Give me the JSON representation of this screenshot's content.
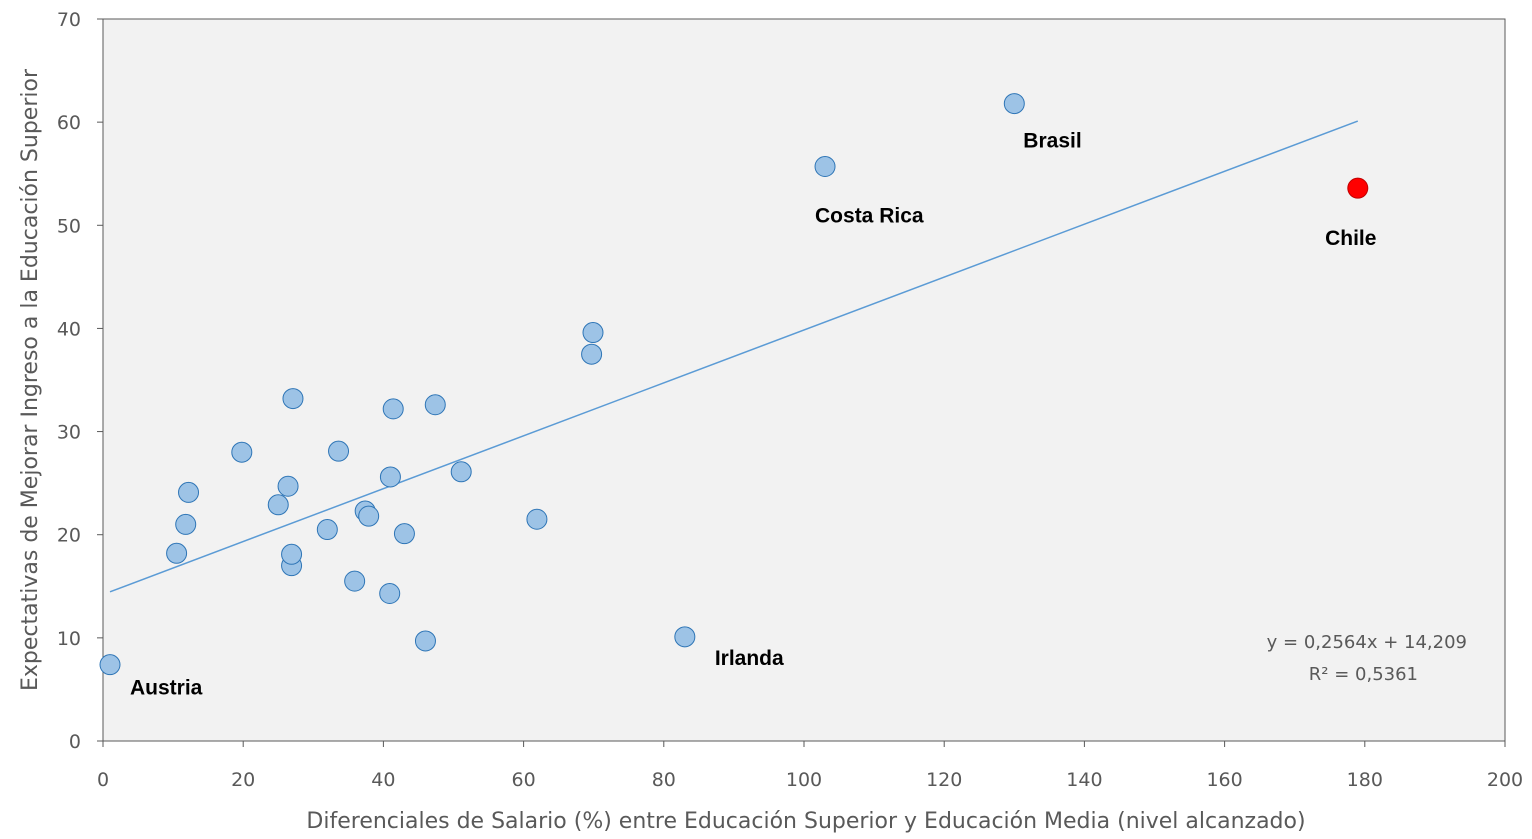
{
  "chart_data": {
    "type": "scatter",
    "xlabel": "Diferenciales de Salario (%) entre Educación Superior y Educación Media (nivel alcanzado)",
    "ylabel": "Expectativas de Mejorar Ingreso a la Educación Superior",
    "xlim": [
      0,
      200
    ],
    "ylim": [
      0,
      70
    ],
    "x_ticks": [
      "0",
      "20",
      "40",
      "60",
      "80",
      "100",
      "120",
      "140",
      "160",
      "180",
      "200"
    ],
    "y_ticks": [
      "0",
      "10",
      "20",
      "30",
      "40",
      "50",
      "60",
      "70"
    ],
    "grid": false,
    "colors": {
      "point": "#9dc3e6",
      "point_edge": "#2e75b6",
      "highlight": "#ff0000",
      "highlight_edge": "#c00000",
      "trendline": "#5b9bd5",
      "plot_bg": "#f2f2f2"
    },
    "series": [
      {
        "points": [
          {
            "x": 1,
            "y": 7.4,
            "label": "Austria"
          },
          {
            "x": 10.5,
            "y": 18.2,
            "label": ""
          },
          {
            "x": 11.8,
            "y": 21.0,
            "label": ""
          },
          {
            "x": 12.2,
            "y": 24.1,
            "label": ""
          },
          {
            "x": 19.8,
            "y": 28.0,
            "label": ""
          },
          {
            "x": 25.0,
            "y": 22.9,
            "label": ""
          },
          {
            "x": 26.4,
            "y": 24.7,
            "label": ""
          },
          {
            "x": 26.9,
            "y": 17.0,
            "label": ""
          },
          {
            "x": 26.9,
            "y": 18.1,
            "label": ""
          },
          {
            "x": 27.1,
            "y": 33.2,
            "label": ""
          },
          {
            "x": 32.0,
            "y": 20.5,
            "label": ""
          },
          {
            "x": 33.6,
            "y": 28.1,
            "label": ""
          },
          {
            "x": 35.9,
            "y": 15.5,
            "label": ""
          },
          {
            "x": 37.4,
            "y": 22.3,
            "label": ""
          },
          {
            "x": 37.9,
            "y": 21.8,
            "label": ""
          },
          {
            "x": 40.9,
            "y": 14.3,
            "label": ""
          },
          {
            "x": 41.0,
            "y": 25.6,
            "label": ""
          },
          {
            "x": 41.4,
            "y": 32.2,
            "label": ""
          },
          {
            "x": 43.0,
            "y": 20.1,
            "label": ""
          },
          {
            "x": 46.0,
            "y": 9.7,
            "label": ""
          },
          {
            "x": 47.4,
            "y": 32.6,
            "label": ""
          },
          {
            "x": 51.1,
            "y": 26.1,
            "label": ""
          },
          {
            "x": 61.9,
            "y": 21.5,
            "label": ""
          },
          {
            "x": 69.7,
            "y": 37.5,
            "label": ""
          },
          {
            "x": 69.9,
            "y": 39.6,
            "label": ""
          },
          {
            "x": 83.0,
            "y": 10.1,
            "label": "Irlanda"
          },
          {
            "x": 103.0,
            "y": 55.7,
            "label": "Costa Rica"
          },
          {
            "x": 130.0,
            "y": 61.8,
            "label": "Brasil"
          }
        ]
      },
      {
        "points": [
          {
            "x": 179.0,
            "y": 53.6,
            "label": "Chile"
          }
        ]
      }
    ],
    "trendline": {
      "slope": 0.2564,
      "intercept": 14.209,
      "x_range": [
        1,
        179
      ],
      "equation": "y = 0,2564x + 14,209",
      "r_squared": "R² = 0,5361"
    }
  }
}
